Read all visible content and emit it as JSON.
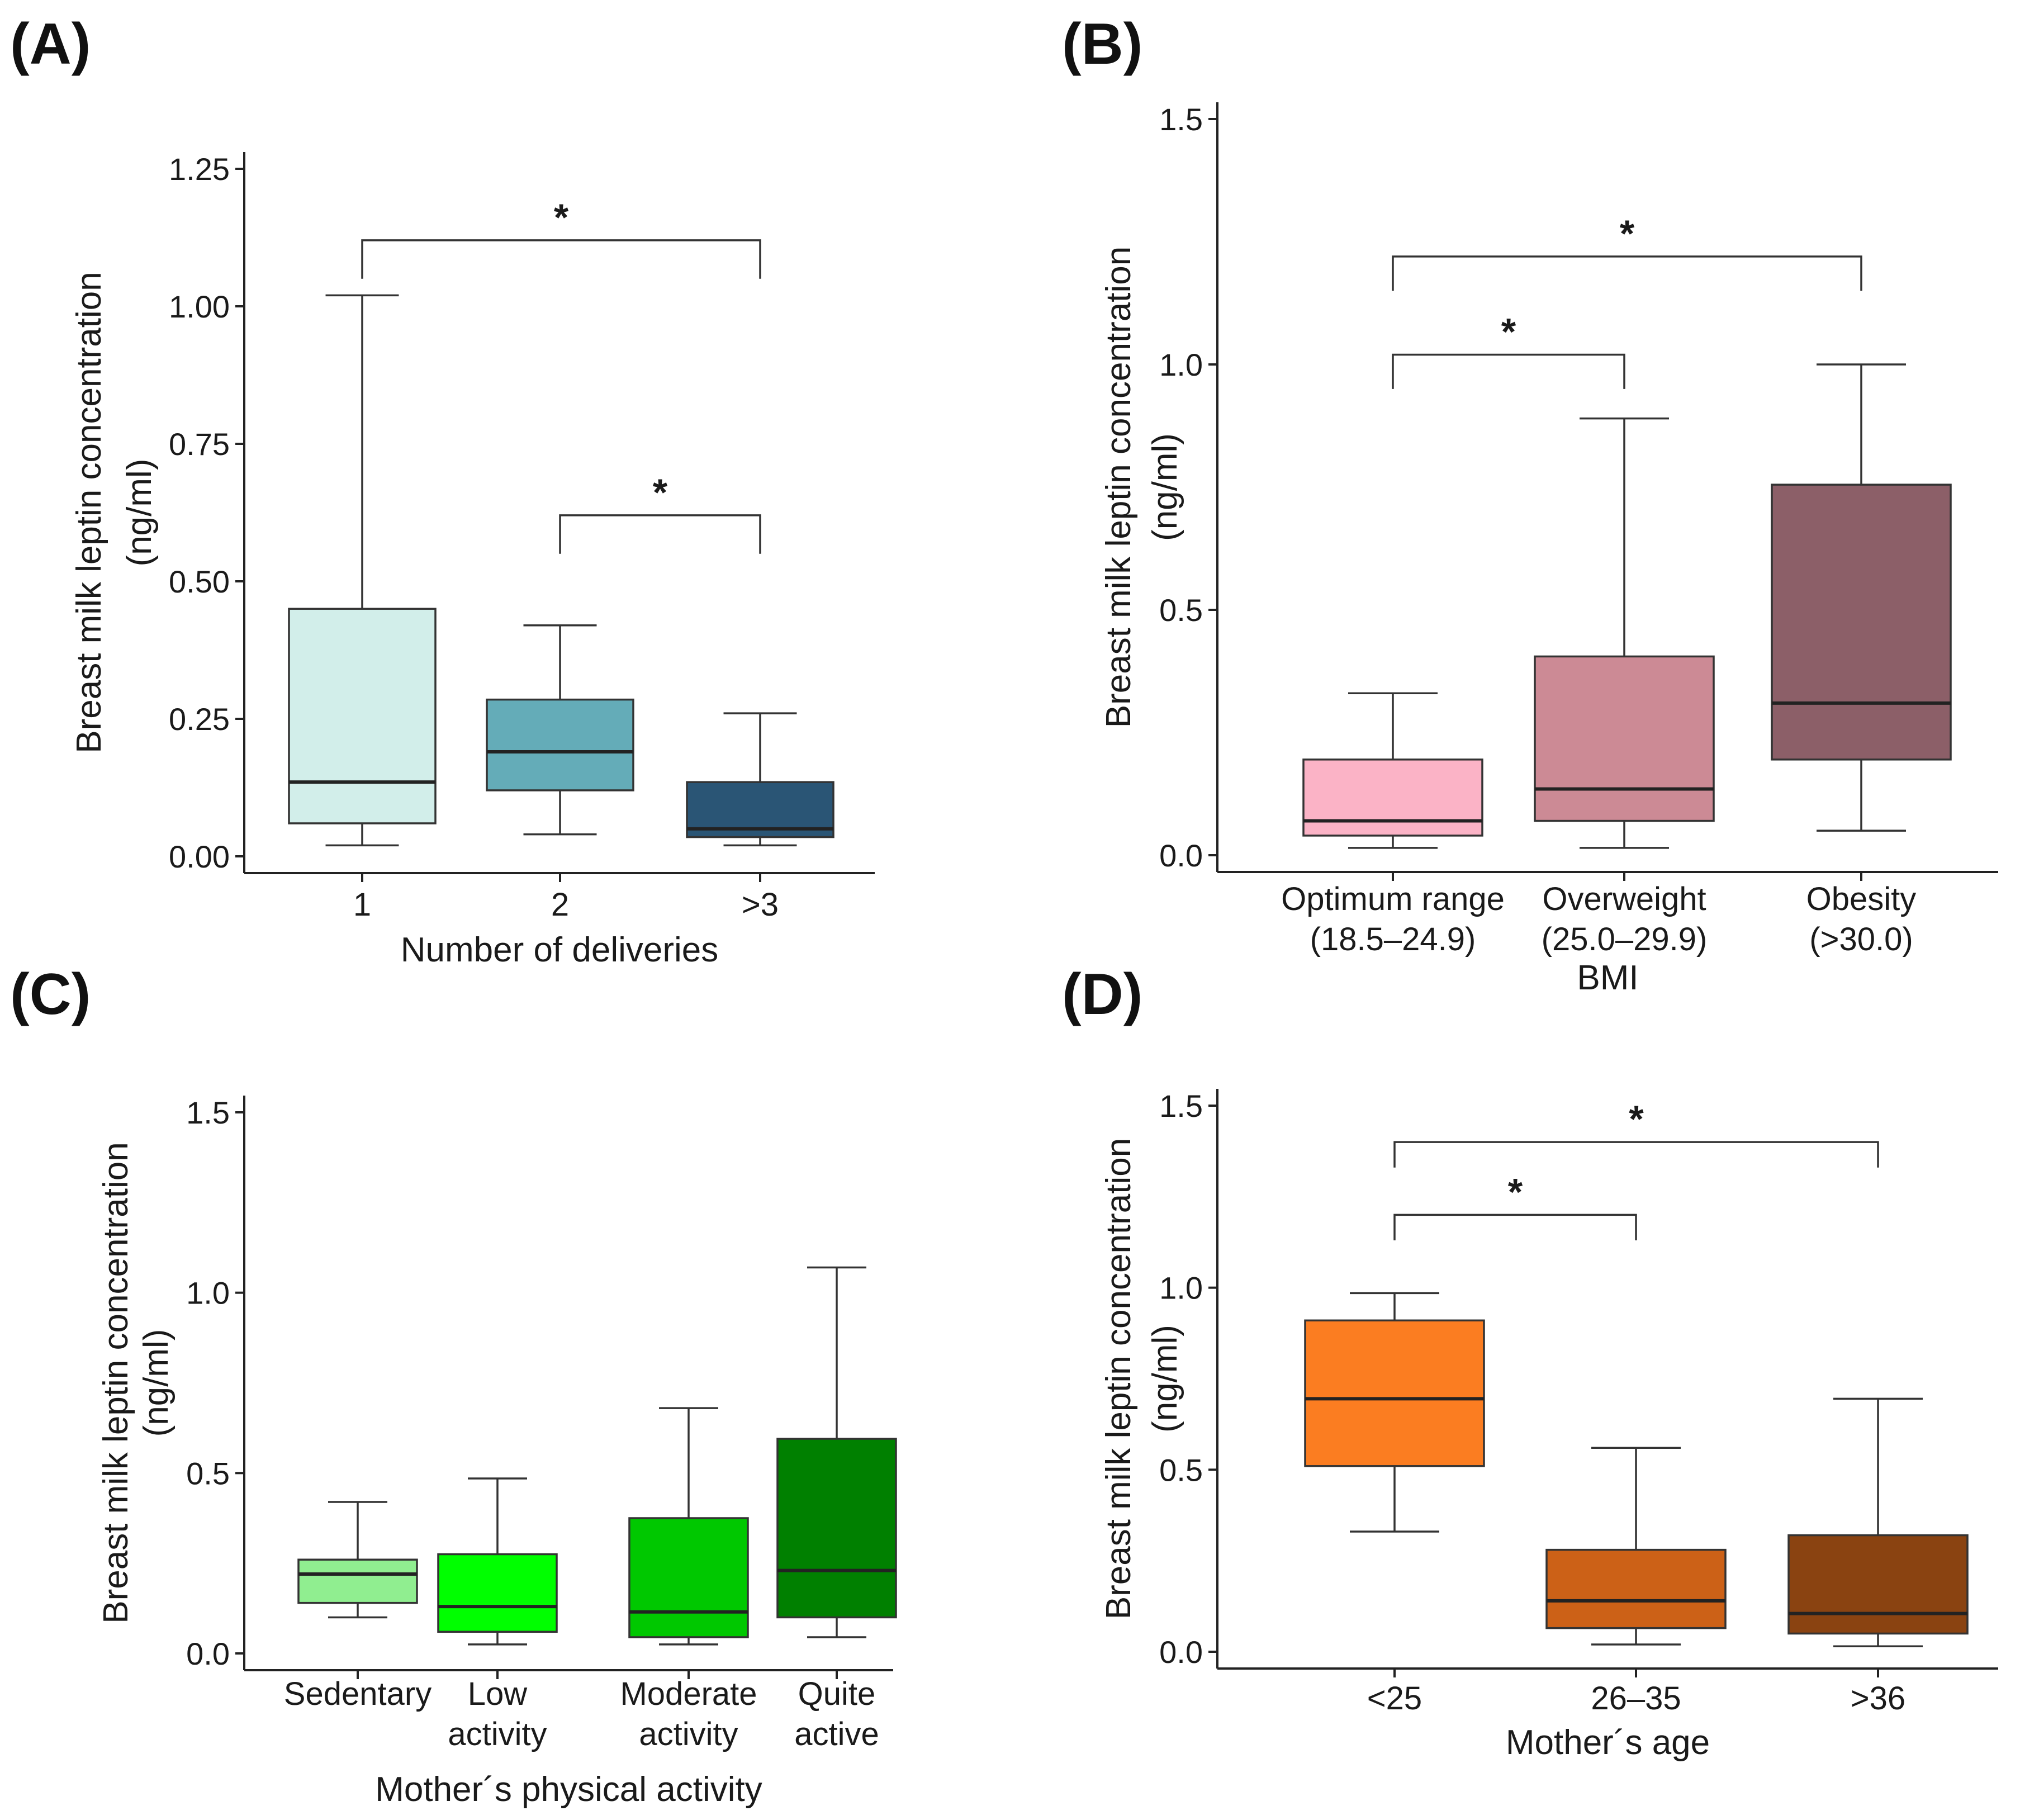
{
  "chart_data": [
    {
      "panel": "(A)",
      "type": "box",
      "ylabel": [
        "Breast milk leptin concentration",
        "(ng/ml)"
      ],
      "xlabel": "Number of deliveries",
      "ylim": [
        0,
        1.25
      ],
      "yticks": [
        0,
        0.25,
        0.5,
        0.75,
        1.0,
        1.25
      ],
      "ytick_labels": [
        "0.00",
        "0.25",
        "0.50",
        "0.75",
        "1.00",
        "1.25"
      ],
      "categories": [
        [
          "1"
        ],
        [
          "2"
        ],
        [
          ">3"
        ]
      ],
      "boxes": [
        {
          "color": "#d2eeea",
          "whisker_low": 0.02,
          "q1": 0.06,
          "median": 0.135,
          "q3": 0.45,
          "whisker_high": 1.02
        },
        {
          "color": "#64acb8",
          "whisker_low": 0.04,
          "q1": 0.12,
          "median": 0.19,
          "q3": 0.285,
          "whisker_high": 0.42
        },
        {
          "color": "#2a5575",
          "whisker_low": 0.02,
          "q1": 0.035,
          "median": 0.05,
          "q3": 0.135,
          "whisker_high": 0.26
        }
      ],
      "brackets": [
        {
          "from": 0,
          "to": 2,
          "y_top": 1.12,
          "y_low_left": 1.05,
          "y_low_right": 1.05,
          "label": "*"
        },
        {
          "from": 1,
          "to": 2,
          "y_top": 0.62,
          "y_low_left": 0.55,
          "y_low_right": 0.55,
          "label": "*"
        }
      ]
    },
    {
      "panel": "(B)",
      "type": "box",
      "ylabel": [
        "Breast milk leptin concentration",
        "(ng/ml)"
      ],
      "xlabel": "BMI",
      "ylim": [
        0,
        1.5
      ],
      "yticks": [
        0,
        0.5,
        1.0,
        1.5
      ],
      "ytick_labels": [
        "0.0",
        "0.5",
        "1.0",
        "1.5"
      ],
      "categories": [
        [
          "Optimum range",
          "(18.5–24.9)"
        ],
        [
          "Overweight",
          "(25.0–29.9)"
        ],
        [
          "Obesity",
          "(>30.0)"
        ]
      ],
      "boxes": [
        {
          "color": "#fbb3c6",
          "whisker_low": 0.015,
          "q1": 0.04,
          "median": 0.07,
          "q3": 0.195,
          "whisker_high": 0.33
        },
        {
          "color": "#cc8a95",
          "whisker_low": 0.015,
          "q1": 0.07,
          "median": 0.135,
          "q3": 0.405,
          "whisker_high": 0.89
        },
        {
          "color": "#8c5f68",
          "whisker_low": 0.05,
          "q1": 0.195,
          "median": 0.31,
          "q3": 0.755,
          "whisker_high": 1.0
        }
      ],
      "brackets": [
        {
          "from": 0,
          "to": 2,
          "y_top": 1.22,
          "y_low_left": 1.15,
          "y_low_right": 1.15,
          "label": "*"
        },
        {
          "from": 0,
          "to": 1,
          "y_top": 1.02,
          "y_low_left": 0.95,
          "y_low_right": 0.95,
          "label": "*"
        }
      ]
    },
    {
      "panel": "(C)",
      "type": "box",
      "ylabel": [
        "Breast milk leptin concentration",
        "(ng/ml)"
      ],
      "xlabel": "Mother´s physical activity",
      "ylim": [
        0,
        1.5
      ],
      "yticks": [
        0,
        0.5,
        1.0,
        1.5
      ],
      "ytick_labels": [
        "0.0",
        "0.5",
        "1.0",
        "1.5"
      ],
      "categories": [
        [
          "Sedentary"
        ],
        [
          "Low",
          "activity"
        ],
        [
          "Moderate",
          "activity"
        ],
        [
          "Quite",
          "active"
        ]
      ],
      "boxes": [
        {
          "color": "#90ee90",
          "whisker_low": 0.1,
          "q1": 0.14,
          "median": 0.22,
          "q3": 0.26,
          "whisker_high": 0.42
        },
        {
          "color": "#00ff00",
          "whisker_low": 0.025,
          "q1": 0.06,
          "median": 0.13,
          "q3": 0.275,
          "whisker_high": 0.485
        },
        {
          "color": "#00c800",
          "whisker_low": 0.025,
          "q1": 0.045,
          "median": 0.115,
          "q3": 0.375,
          "whisker_high": 0.68
        },
        {
          "color": "#008000",
          "whisker_low": 0.045,
          "q1": 0.1,
          "median": 0.23,
          "q3": 0.595,
          "whisker_high": 1.07
        }
      ],
      "brackets": []
    },
    {
      "panel": "(D)",
      "type": "box",
      "ylabel": [
        "Breast milk leptin concentration",
        "(ng/ml)"
      ],
      "xlabel": "Mother´s age",
      "ylim": [
        0,
        1.5
      ],
      "yticks": [
        0,
        0.5,
        1.0,
        1.5
      ],
      "ytick_labels": [
        "0.0",
        "0.5",
        "1.0",
        "1.5"
      ],
      "categories": [
        [
          "<25"
        ],
        [
          "26–35"
        ],
        [
          ">36"
        ]
      ],
      "boxes": [
        {
          "color": "#fb7d21",
          "whisker_low": 0.33,
          "q1": 0.51,
          "median": 0.695,
          "q3": 0.91,
          "whisker_high": 0.985
        },
        {
          "color": "#cc6117",
          "whisker_low": 0.02,
          "q1": 0.065,
          "median": 0.14,
          "q3": 0.28,
          "whisker_high": 0.56
        },
        {
          "color": "#8a4311",
          "whisker_low": 0.015,
          "q1": 0.05,
          "median": 0.105,
          "q3": 0.32,
          "whisker_high": 0.695
        }
      ],
      "brackets": [
        {
          "from": 0,
          "to": 2,
          "y_top": 1.4,
          "y_low_left": 1.33,
          "y_low_right": 1.33,
          "label": "*"
        },
        {
          "from": 0,
          "to": 1,
          "y_top": 1.2,
          "y_low_left": 1.13,
          "y_low_right": 1.13,
          "label": "*"
        }
      ]
    }
  ]
}
